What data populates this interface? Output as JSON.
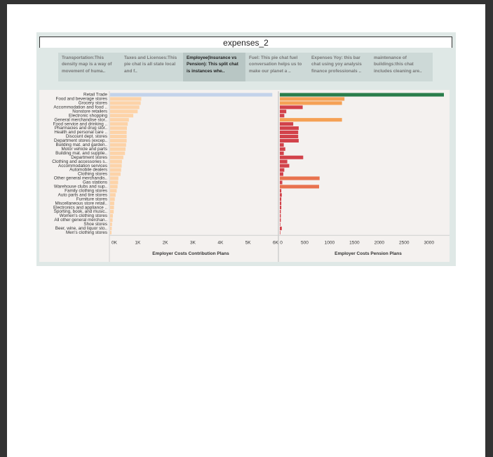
{
  "dashboard": {
    "title": "expenses_2",
    "tabs": [
      {
        "label": "Transportation:This density map is  a way of movement of huma..",
        "active": false
      },
      {
        "label": "Taxes and Licenses:This pie chat is all state local and f..",
        "active": false
      },
      {
        "label": "Employee(Insurance vs Pension): This split chat is instances whe..",
        "active": true
      },
      {
        "label": "Fuel: This pie chat fuel conversation helps us to make our planet a ..",
        "active": false
      },
      {
        "label": "Expenses Yoy: this bar chat using yoy analysis finance professionals ..",
        "active": false
      },
      {
        "label": "maintenance of buildings:this chat includes  cleaning are..",
        "active": false
      }
    ]
  },
  "colors": {
    "contribution_highlight": "#c3d3ea",
    "contribution_bar": "#fdd3a8",
    "pension_top": "#2a7d4b",
    "pension_orange": "#f5a155",
    "pension_orange_red": "#e8724e",
    "pension_red": "#d2424a"
  },
  "chart_data": [
    {
      "type": "bar",
      "orientation": "horizontal",
      "xlabel": "Employer Costs Contribution Plans",
      "xlim": [
        0,
        6000
      ],
      "xticks": [
        "0K",
        "1K",
        "2K",
        "3K",
        "4K",
        "5K",
        "6K"
      ],
      "categories": [
        "Retail Trade",
        "Food and beverage stores",
        "Grocery stores",
        "Accommodation and food ..",
        "Nonstore retailers",
        "Electronic shopping",
        "General merchandise stor..",
        "Food service and drinking ..",
        "Pharmacies and drug stor..",
        "Health and personal care ..",
        "Discount dept. stores",
        "Department stores (excep..",
        "Building mat. and garden..",
        "Motor vehicle and parts",
        "Building mat. and supplie..",
        "Department stores",
        "Clothing and accessories s..",
        "Accommodation services",
        "Automobile dealers",
        "Clothing stores",
        "Other general merchandis..",
        "Gas stations",
        "Warehouse clubs and sup..",
        "Family clothing stores",
        "Auto parts and tire stores",
        "Furniture stores",
        "Miscellaneous store retail..",
        "Electronics and appliance ..",
        "Sporting, book, and music..",
        "Women's clothing stores",
        "All other general merchan..",
        "Shoe stores",
        "Beer, wine, and liquor sto..",
        "Men's clothing stores"
      ],
      "values": [
        5880,
        1130,
        1110,
        1060,
        1000,
        840,
        680,
        640,
        610,
        600,
        600,
        600,
        580,
        560,
        540,
        480,
        430,
        420,
        400,
        380,
        300,
        290,
        270,
        240,
        200,
        170,
        150,
        140,
        130,
        100,
        90,
        70,
        60,
        50
      ]
    },
    {
      "type": "bar",
      "orientation": "horizontal",
      "xlabel": "Employer Costs Pension Plans",
      "xlim": [
        0,
        3300
      ],
      "xticks": [
        "0",
        "500",
        "1000",
        "1500",
        "2000",
        "2500",
        "3000"
      ],
      "categories": [
        "Retail Trade",
        "Food and beverage stores",
        "Grocery stores",
        "Accommodation and food ..",
        "Nonstore retailers",
        "Electronic shopping",
        "General merchandise stor..",
        "Food service and drinking ..",
        "Pharmacies and drug stor..",
        "Health and personal care ..",
        "Discount dept. stores",
        "Department stores (excep..",
        "Building mat. and garden..",
        "Motor vehicle and parts",
        "Building mat. and supplie..",
        "Department stores",
        "Clothing and accessories s..",
        "Accommodation services",
        "Automobile dealers",
        "Clothing stores",
        "Other general merchandis..",
        "Gas stations",
        "Warehouse clubs and sup..",
        "Family clothing stores",
        "Auto parts and tire stores",
        "Furniture stores",
        "Miscellaneous store retail..",
        "Electronics and appliance ..",
        "Sporting, book, and music..",
        "Women's clothing stores",
        "All other general merchan..",
        "Shoe stores",
        "Beer, wine, and liquor sto..",
        "Men's clothing stores"
      ],
      "values": [
        3300,
        1300,
        1250,
        460,
        130,
        90,
        1250,
        270,
        380,
        370,
        370,
        380,
        80,
        110,
        80,
        470,
        150,
        190,
        90,
        70,
        800,
        50,
        790,
        30,
        40,
        30,
        30,
        30,
        20,
        20,
        20,
        10,
        40,
        10
      ],
      "bar_colors": [
        "top",
        "orange",
        "orange",
        "red",
        "red",
        "red",
        "orange",
        "red",
        "red",
        "red",
        "red",
        "red",
        "red",
        "red",
        "red",
        "red",
        "red",
        "red",
        "red",
        "red",
        "orange_red",
        "red",
        "orange_red",
        "red",
        "red",
        "red",
        "red",
        "red",
        "red",
        "red",
        "red",
        "red",
        "red",
        "red"
      ]
    }
  ]
}
